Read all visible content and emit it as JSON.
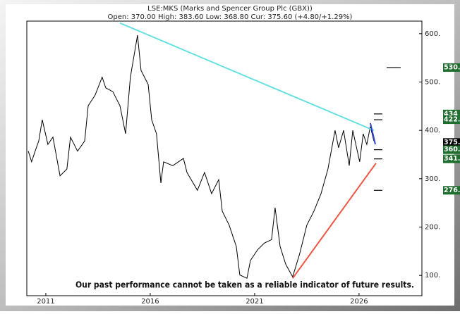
{
  "chart_data": {
    "type": "line",
    "title": "LSE:MKS (Marks and Spencer Group Plc (GBX))",
    "subtitle": "Open: 370.00 High: 383.60 Low: 368.80 Cur: 375.60 (+4.80/+1.29%)",
    "annotation": "Our past performance cannot be taken as a reliable indicator of future results.",
    "x": [
      2010.16,
      2010.32,
      2010.49,
      2010.66,
      2010.83,
      2011.1,
      2011.34,
      2011.68,
      2012.01,
      2012.18,
      2012.52,
      2012.86,
      2013.03,
      2013.36,
      2013.7,
      2013.87,
      2014.21,
      2014.55,
      2014.82,
      2015.05,
      2015.22,
      2015.39,
      2015.56,
      2015.9,
      2016.07,
      2016.3,
      2016.51,
      2016.64,
      2017.08,
      2017.59,
      2017.76,
      2018.26,
      2018.6,
      2018.94,
      2019.28,
      2019.45,
      2019.78,
      2020.12,
      2020.29,
      2020.63,
      2020.8,
      2021.14,
      2021.47,
      2021.81,
      2021.98,
      2022.22,
      2022.49,
      2022.82,
      2023.16,
      2023.5,
      2023.84,
      2024.18,
      2024.51,
      2024.85,
      2025.02,
      2025.26,
      2025.53,
      2025.7,
      2026.03,
      2026.2,
      2026.37,
      2026.54,
      2026.71
    ],
    "series": [
      {
        "color": "#000000",
        "values": [
          357,
          335,
          357,
          378,
          422,
          371,
          386,
          306,
          320,
          386,
          357,
          378,
          451,
          473,
          510,
          488,
          480,
          451,
          393,
          510,
          553,
          597,
          524,
          495,
          422,
          393,
          291,
          335,
          327,
          342,
          313,
          276,
          313,
          269,
          298,
          233,
          204,
          160,
          101,
          94,
          131,
          153,
          167,
          174,
          240,
          160,
          123,
          97,
          145,
          204,
          233,
          269,
          320,
          400,
          364,
          400,
          327,
          400,
          335,
          393,
          371,
          408,
          378
        ]
      }
    ],
    "trendlines": [
      {
        "color": "#66e0e0",
        "x": [
          2014.55,
          2026.71
        ],
        "values": [
          622,
          400
        ]
      },
      {
        "color": "#ee5544",
        "x": [
          2022.82,
          2026.81
        ],
        "values": [
          94,
          332
        ]
      },
      {
        "color": "#3344cc",
        "x": [
          2026.54,
          2026.78
        ],
        "values": [
          415,
          371
        ]
      }
    ],
    "levels": [
      {
        "value": 530,
        "label": "530.",
        "color": "#1f6e2e"
      },
      {
        "value": 434,
        "label": "434",
        "color": "#1f6e2e"
      },
      {
        "value": 422,
        "label": "422.",
        "color": "#1f6e2e"
      },
      {
        "value": 375,
        "label": "375.",
        "color": "#000000"
      },
      {
        "value": 360,
        "label": "360.",
        "color": "#1f6e2e"
      },
      {
        "value": 341,
        "label": "341.",
        "color": "#1f6e2e"
      },
      {
        "value": 276,
        "label": "276.",
        "color": "#1f6e2e"
      }
    ],
    "xlim": [
      2010.09,
      2029.01
    ],
    "ylim": [
      58,
      626
    ],
    "xticks": [
      2011,
      2016,
      2021,
      2026
    ],
    "yticks": [
      {
        "value": 100,
        "label": "100."
      },
      {
        "value": 200,
        "label": "200."
      },
      {
        "value": 300,
        "label": "300."
      },
      {
        "value": 400,
        "label": "400."
      },
      {
        "value": 500,
        "label": "500."
      },
      {
        "value": 600,
        "label": "600."
      }
    ]
  }
}
